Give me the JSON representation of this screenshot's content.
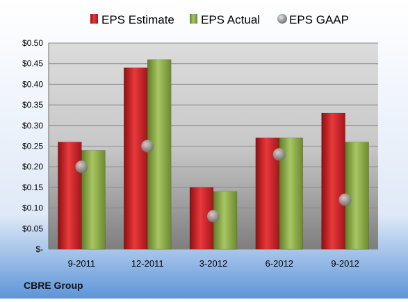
{
  "chart_data": {
    "type": "bar",
    "company": "CBRE Group",
    "categories": [
      "9-2011",
      "12-2011",
      "3-2012",
      "6-2012",
      "9-2012"
    ],
    "series": [
      {
        "name": "EPS Estimate",
        "kind": "bar",
        "color": "#cc1f22",
        "values": [
          0.26,
          0.44,
          0.15,
          0.27,
          0.33
        ]
      },
      {
        "name": "EPS Actual",
        "kind": "bar",
        "color": "#8fae45",
        "values": [
          0.24,
          0.46,
          0.14,
          0.27,
          0.26
        ]
      },
      {
        "name": "EPS GAAP",
        "kind": "marker",
        "color": "#a9a9a9",
        "values": [
          0.2,
          0.25,
          0.08,
          0.23,
          0.12
        ]
      }
    ],
    "y_ticks": [
      "$-",
      "$0.05",
      "$0.10",
      "$0.15",
      "$0.20",
      "$0.25",
      "$0.30",
      "$0.35",
      "$0.40",
      "$0.45",
      "$0.50"
    ],
    "ylim": [
      0,
      0.5
    ],
    "grid": true,
    "legend": "top"
  }
}
